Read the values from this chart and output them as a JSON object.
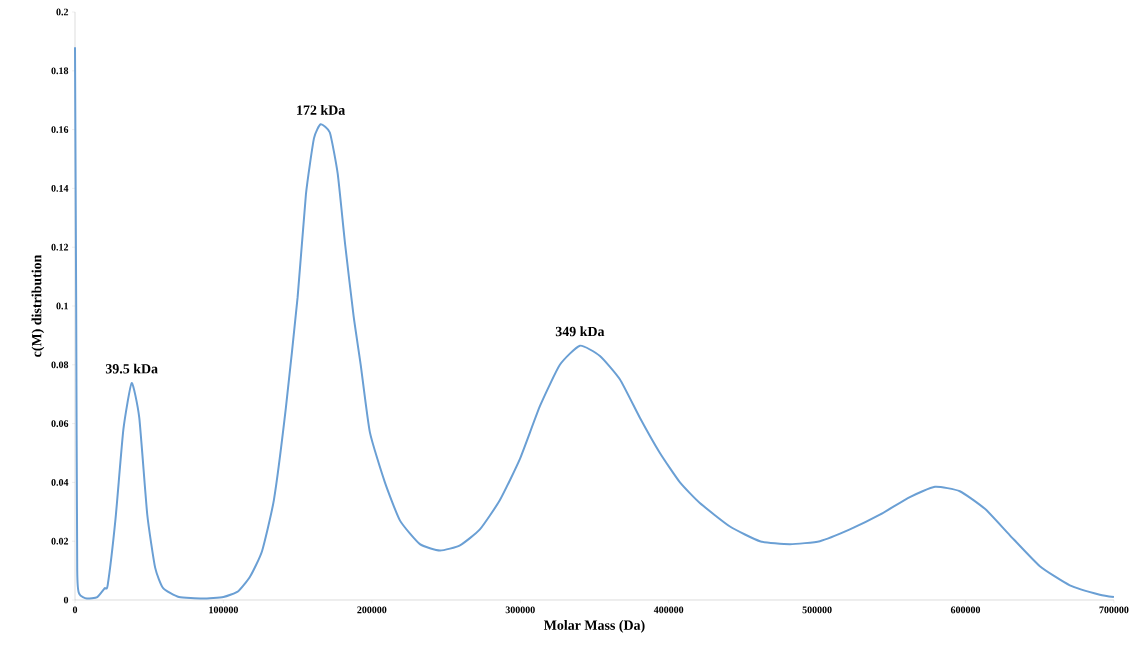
{
  "chart_data": {
    "type": "line",
    "xlabel": "Molar Mass (Da)",
    "ylabel": "c(M) distribution",
    "xlim": [
      0,
      700000
    ],
    "ylim": [
      0,
      0.2
    ],
    "xticks": [
      0,
      100000,
      200000,
      300000,
      400000,
      500000,
      600000,
      700000
    ],
    "yticks": [
      0,
      0.02,
      0.04,
      0.06,
      0.08,
      {
        "value": 0.1,
        "label": "0.1"
      },
      0.12,
      0.14,
      0.16,
      0.18,
      {
        "value": 0.2,
        "label": "0.2"
      }
    ],
    "grid": false,
    "marker": "none",
    "line_style": "solid",
    "series": [
      {
        "color": "#6a9fd4",
        "x": [
          0,
          800,
          1500,
          3000,
          8000,
          15000,
          20000,
          22000,
          27300,
          32600,
          38200,
          43300,
          48700,
          54000,
          59400,
          70000,
          86000,
          100000,
          110000,
          118000,
          126000,
          134000,
          142000,
          150000,
          155600,
          161000,
          165500,
          171700,
          177000,
          182000,
          187700,
          192500,
          198700,
          208800,
          219000,
          232400,
          245900,
          259400,
          272800,
          286300,
          299800,
          313300,
          326700,
          340200,
          353700,
          367200,
          380600,
          394100,
          407600,
          421000,
          441300,
          461500,
          481700,
          501900,
          522100,
          542300,
          562500,
          579400,
          596200,
          613100,
          629900,
          650100,
          670300,
          690500,
          700000
        ],
        "values": [
          0.188,
          0.1,
          0.01,
          0.002,
          0.0005,
          0.001,
          0.004,
          0.005,
          0.0276,
          0.058,
          0.0738,
          0.062,
          0.029,
          0.011,
          0.004,
          0.001,
          0.0005,
          0.001,
          0.003,
          0.008,
          0.0166,
          0.034,
          0.065,
          0.103,
          0.138,
          0.157,
          0.1618,
          0.159,
          0.145,
          0.121,
          0.0966,
          0.08,
          0.057,
          0.04,
          0.027,
          0.019,
          0.0168,
          0.0186,
          0.024,
          0.034,
          0.048,
          0.066,
          0.08,
          0.0865,
          0.083,
          0.075,
          0.062,
          0.05,
          0.04,
          0.033,
          0.025,
          0.02,
          0.019,
          0.02,
          0.024,
          0.029,
          0.035,
          0.0385,
          0.037,
          0.031,
          0.022,
          0.0115,
          0.005,
          0.0018,
          0.001
        ]
      }
    ],
    "annotations": [
      {
        "text": "39.5 kDa",
        "x": 38200,
        "y": 0.0738
      },
      {
        "text": "172 kDa",
        "x": 165500,
        "y": 0.1618
      },
      {
        "text": "349 kDa",
        "x": 340200,
        "y": 0.0865
      }
    ]
  }
}
